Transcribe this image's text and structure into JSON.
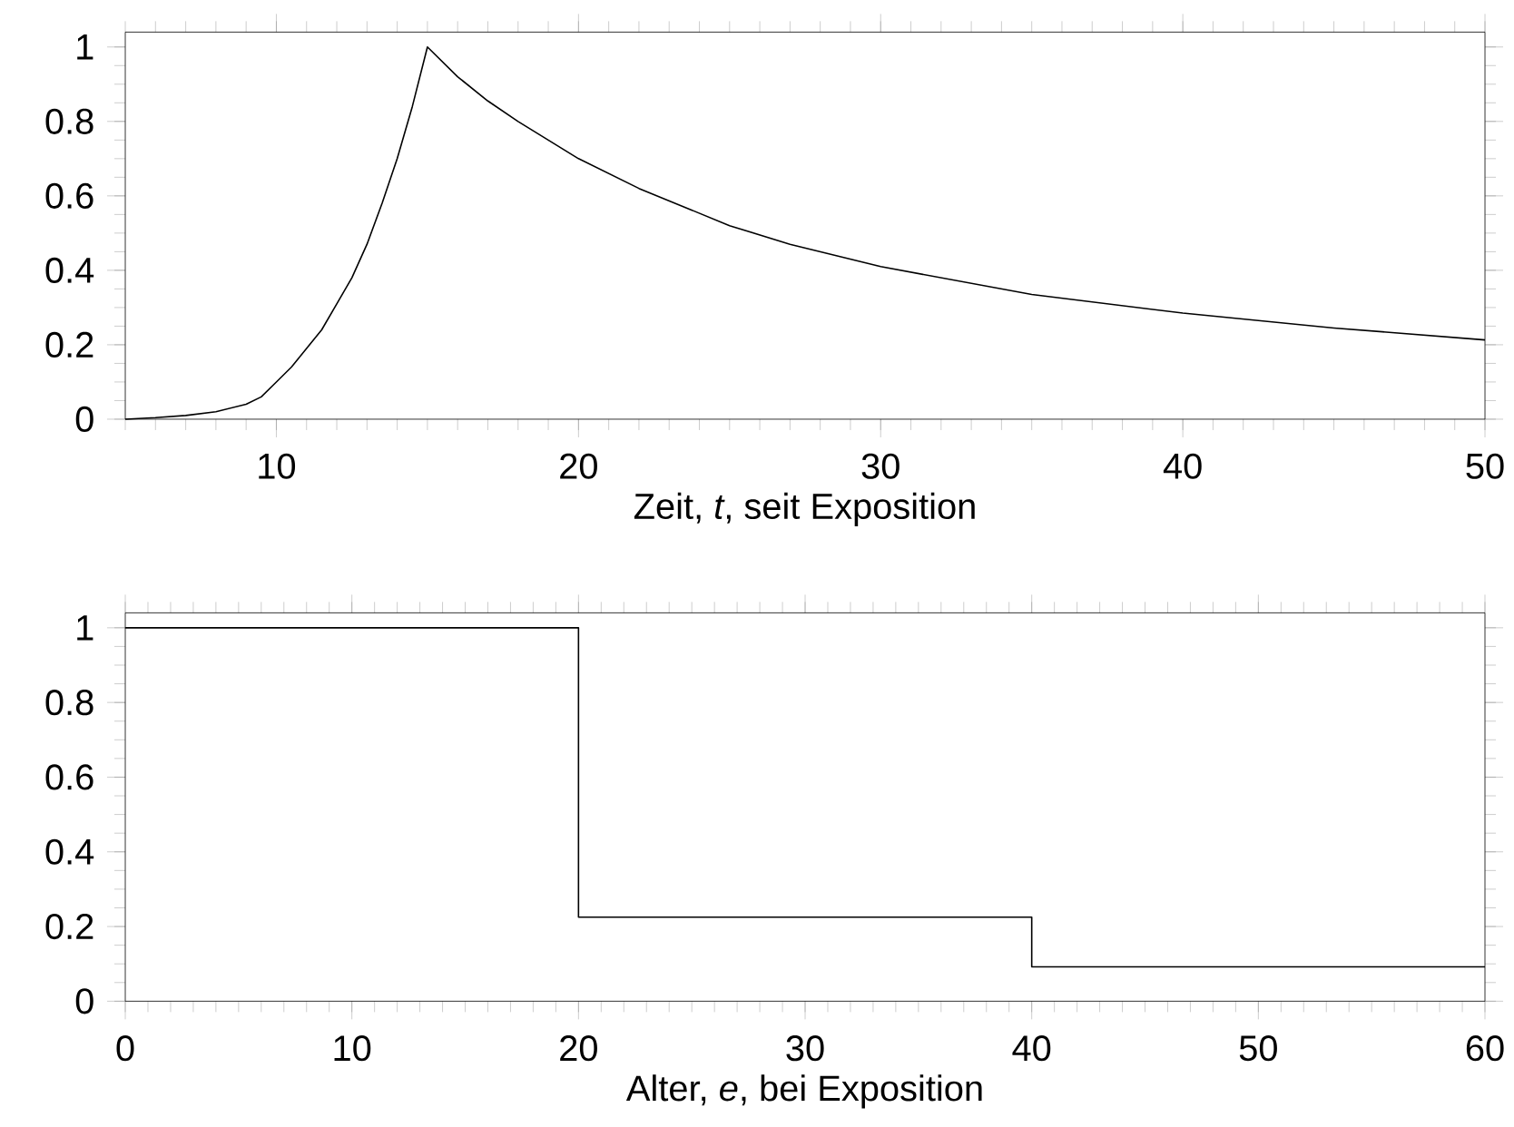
{
  "chart_data": [
    {
      "type": "line",
      "color": "#000000",
      "xlim": [
        5,
        50
      ],
      "ylim": [
        0,
        1.04
      ],
      "xticks": [
        10,
        20,
        30,
        40,
        50
      ],
      "yticks": [
        0,
        0.2,
        0.4,
        0.6,
        0.8,
        1
      ],
      "xlabel": "Zeit, *t*, seit Exposition",
      "x": [
        5,
        6,
        7,
        8,
        9,
        9.5,
        10,
        10.5,
        11,
        11.5,
        12,
        12.5,
        13,
        13.5,
        14,
        14.5,
        15,
        16,
        17,
        18,
        19,
        20,
        22,
        25,
        27,
        30,
        35,
        40,
        45,
        50
      ],
      "values": [
        0,
        0.004,
        0.01,
        0.02,
        0.04,
        0.06,
        0.1,
        0.14,
        0.19,
        0.24,
        0.31,
        0.38,
        0.47,
        0.58,
        0.7,
        0.84,
        1,
        0.92,
        0.855,
        0.8,
        0.75,
        0.7,
        0.62,
        0.52,
        0.47,
        0.41,
        0.335,
        0.285,
        0.245,
        0.213
      ]
    },
    {
      "type": "step",
      "color": "#000000",
      "xlim": [
        0,
        60
      ],
      "ylim": [
        0,
        1.04
      ],
      "xticks": [
        0,
        10,
        20,
        30,
        40,
        50,
        60
      ],
      "yticks": [
        0,
        0.2,
        0.4,
        0.6,
        0.8,
        1
      ],
      "xlabel": "Alter, *e*, bei Exposition",
      "x": [
        0,
        20,
        40,
        60
      ],
      "values": [
        1,
        0.225,
        0.092,
        0.092
      ]
    }
  ]
}
